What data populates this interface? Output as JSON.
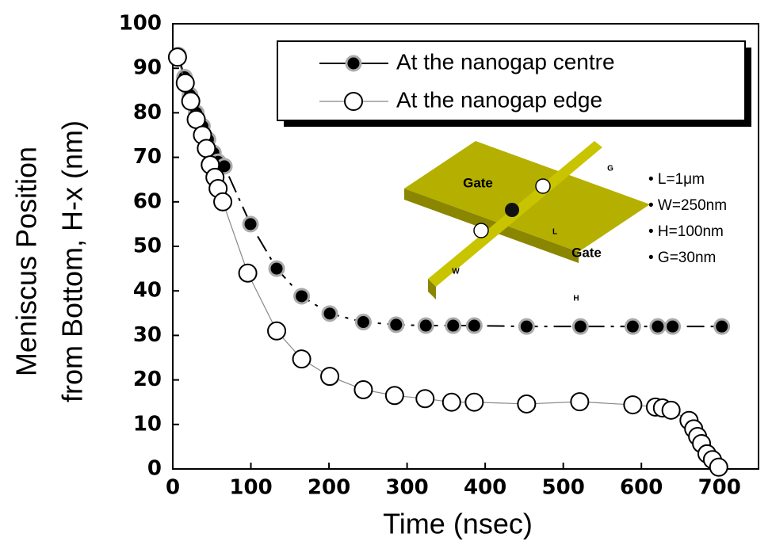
{
  "chart_data": {
    "type": "line",
    "x_label": "Time (nsec)",
    "y_label": [
      "Meniscus Position",
      "from Bottom, H-x (nm)"
    ],
    "xlim": [
      0,
      750
    ],
    "xticks": [
      0,
      100,
      200,
      300,
      400,
      500,
      600,
      700
    ],
    "ylim": [
      0,
      100
    ],
    "yticks": [
      0,
      10,
      20,
      30,
      40,
      50,
      60,
      70,
      80,
      90,
      100
    ],
    "legend_position": "upper right",
    "series": [
      {
        "name": "At the nanogap centre",
        "color": "#000000",
        "marker": "filled",
        "x": [
          7,
          15,
          22,
          30,
          38,
          45,
          52,
          58,
          66,
          99.5,
          133,
          165,
          201,
          244,
          286,
          324,
          359,
          386,
          453,
          522,
          589,
          621,
          640,
          703
        ],
        "values": [
          93,
          88,
          84,
          80,
          77,
          74,
          71,
          69,
          68,
          55,
          45,
          38.8,
          34.9,
          33,
          32.4,
          32.2,
          32.2,
          32.2,
          32,
          32,
          32,
          32,
          32,
          32
        ]
      },
      {
        "name": "At the nanogap edge",
        "color": "#888888",
        "marker": "open",
        "x": [
          6,
          16,
          23,
          30,
          38,
          43,
          48,
          54,
          58,
          64,
          96,
          133,
          165,
          201,
          244,
          284,
          323,
          357,
          386,
          453,
          521,
          589,
          618,
          627,
          638,
          661,
          667,
          672,
          677,
          684,
          691,
          699
        ],
        "values": [
          92.5,
          86.7,
          82.6,
          78.5,
          75,
          72,
          68.3,
          65.5,
          63,
          60,
          44,
          31,
          24.7,
          20.8,
          17.8,
          16.5,
          15.8,
          15,
          15,
          14.6,
          15.1,
          14.4,
          13.9,
          13.7,
          13.2,
          10.9,
          9,
          7.3,
          5.7,
          3.4,
          2.1,
          0.4
        ]
      }
    ],
    "inset": {
      "labels": [
        "Gate",
        "Gate",
        "L",
        "W",
        "G",
        "H"
      ],
      "notes": [
        "• L=1μm",
        "• W=250nm",
        "• H=100nm",
        "• G=30nm"
      ]
    }
  }
}
